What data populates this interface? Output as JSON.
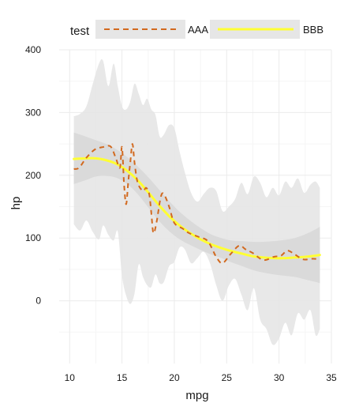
{
  "chart_data": {
    "type": "line",
    "xlabel": "mpg",
    "ylabel": "hp",
    "xlim": [
      9.0,
      35.0
    ],
    "ylim": [
      -100,
      400
    ],
    "xticks": [
      10,
      15,
      20,
      25,
      30,
      35
    ],
    "yticks": [
      0,
      100,
      200,
      300,
      400
    ],
    "grid": true,
    "legend": {
      "title": "test",
      "position": "top",
      "entries": [
        "AAA",
        "BBB"
      ]
    },
    "colors": {
      "AAA": "#d2691e",
      "BBB": "#ffff33",
      "outer_band": "#e6e6e6",
      "inner_band": "#d9d9d9",
      "grid_major": "#ebebeb",
      "grid_minor": "#f5f5f5"
    },
    "series": [
      {
        "name": "AAA",
        "style": "dashed",
        "x": [
          10.4,
          10.9,
          11.6,
          12.4,
          13.2,
          13.9,
          14.4,
          14.8,
          15.0,
          15.2,
          15.4,
          15.6,
          15.8,
          16.0,
          16.2,
          16.5,
          17.0,
          17.3,
          17.6,
          17.8,
          18.0,
          18.3,
          18.7,
          19.0,
          19.5,
          20.0,
          20.8,
          21.4,
          22.3,
          23.2,
          24.0,
          24.6,
          25.4,
          26.2,
          26.8,
          27.5,
          28.5,
          29.5,
          30.2,
          30.8,
          31.5,
          32.3,
          33.2,
          33.9
        ],
        "y": [
          210,
          212,
          228,
          241,
          245,
          246,
          228,
          212,
          245,
          185,
          154,
          190,
          222,
          250,
          220,
          188,
          175,
          180,
          170,
          140,
          108,
          125,
          165,
          170,
          150,
          124,
          115,
          108,
          102,
          95,
          70,
          60,
          75,
          88,
          82,
          76,
          65,
          70,
          72,
          80,
          74,
          66,
          67,
          66
        ]
      },
      {
        "name": "BBB",
        "style": "solid",
        "x": [
          10.4,
          11.5,
          12.5,
          13.5,
          14.5,
          15.5,
          16.5,
          17.5,
          18.5,
          19.5,
          20.5,
          21.5,
          22.5,
          23.5,
          24.5,
          25.5,
          26.5,
          27.5,
          28.5,
          29.5,
          30.5,
          31.5,
          32.5,
          33.5,
          33.9
        ],
        "y": [
          226,
          227,
          227,
          224,
          218,
          207,
          192,
          173,
          153,
          135,
          120,
          108,
          98,
          90,
          84,
          79,
          75,
          71,
          69,
          68,
          68,
          69,
          70,
          72,
          73
        ],
        "band": {
          "lower": [
            186,
            192,
            198,
            199,
            196,
            186,
            170,
            149,
            128,
            111,
            98,
            89,
            81,
            74,
            68,
            61,
            55,
            49,
            45,
            42,
            40,
            38,
            34,
            30,
            28
          ],
          "upper": [
            268,
            262,
            256,
            250,
            241,
            229,
            214,
            197,
            178,
            159,
            142,
            128,
            116,
            106,
            100,
            96,
            95,
            94,
            94,
            95,
            97,
            100,
            106,
            114,
            118
          ]
        },
        "outer_band": {
          "x": [
            10.4,
            11.0,
            11.6,
            12.2,
            12.8,
            13.2,
            13.7,
            14.2,
            14.6,
            15.0,
            15.4,
            15.8,
            16.2,
            16.6,
            17.0,
            17.4,
            17.8,
            18.2,
            18.6,
            19.0,
            19.5,
            20.0,
            20.5,
            21.0,
            21.6,
            22.2,
            22.8,
            23.4,
            24.0,
            24.6,
            25.2,
            25.8,
            26.4,
            27.0,
            27.6,
            28.2,
            28.8,
            29.4,
            30.0,
            30.6,
            31.2,
            31.8,
            32.4,
            33.0,
            33.5,
            33.9
          ],
          "lower": [
            122,
            112,
            128,
            110,
            98,
            120,
            105,
            96,
            110,
            40,
            8,
            -5,
            12,
            58,
            38,
            25,
            22,
            42,
            28,
            30,
            55,
            62,
            85,
            82,
            60,
            68,
            78,
            60,
            25,
            0,
            24,
            35,
            10,
            -15,
            20,
            -30,
            -45,
            -70,
            -60,
            -35,
            -55,
            -20,
            -30,
            -15,
            -55,
            -45
          ],
          "upper": [
            294,
            298,
            310,
            345,
            378,
            382,
            342,
            378,
            342,
            310,
            305,
            318,
            346,
            330,
            312,
            322,
            305,
            296,
            262,
            265,
            280,
            275,
            238,
            205,
            172,
            158,
            170,
            180,
            175,
            143,
            150,
            162,
            188,
            170,
            198,
            188,
            165,
            180,
            168,
            190,
            180,
            195,
            172,
            185,
            190,
            180
          ]
        }
      }
    ]
  }
}
